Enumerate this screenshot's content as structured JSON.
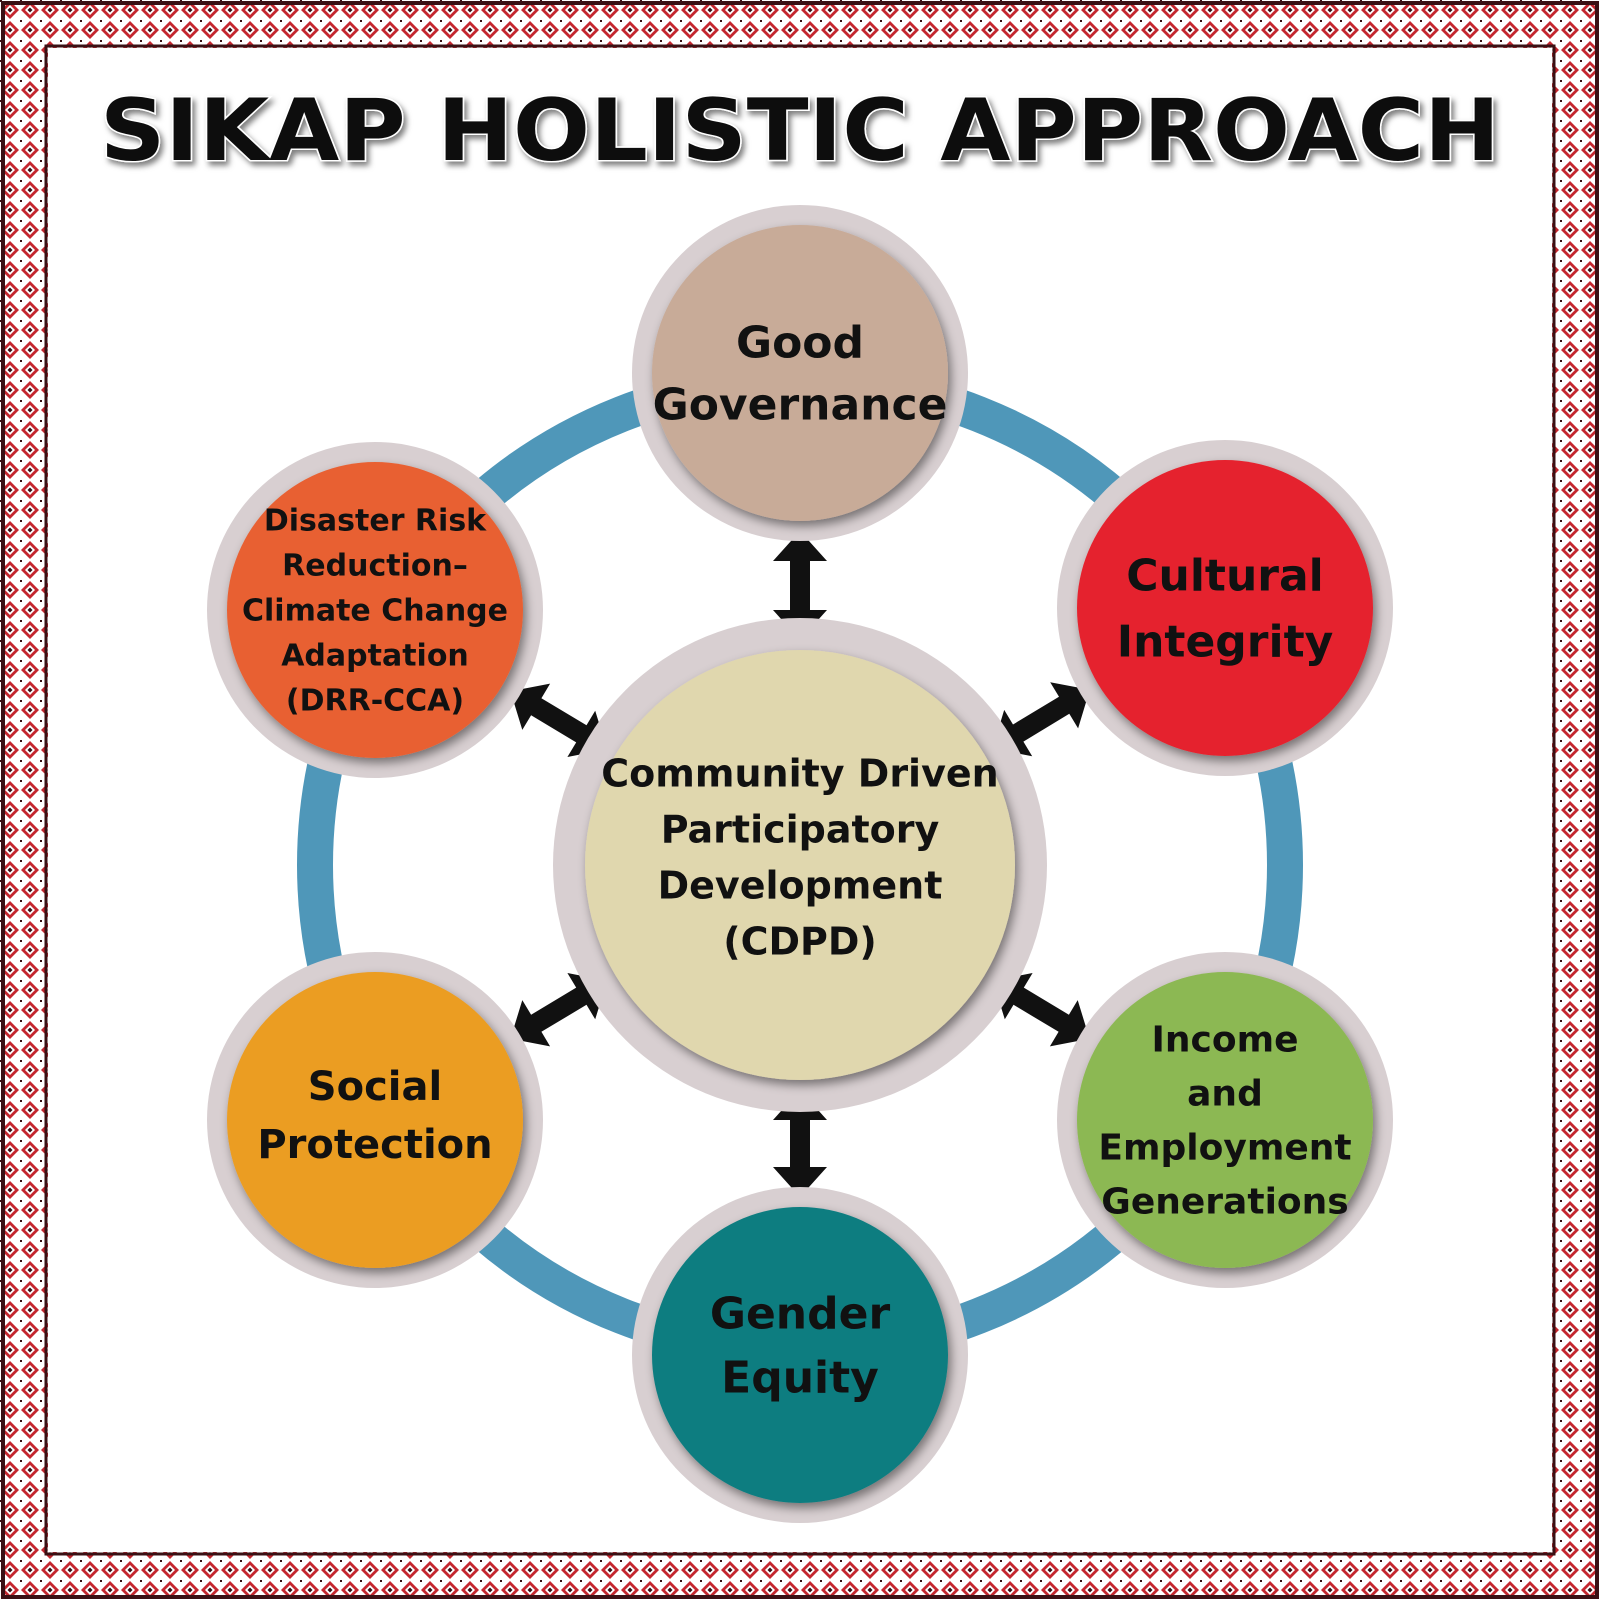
{
  "title": "SIKAP HOLISTIC APPROACH",
  "colors": {
    "border_red": "#c4262e",
    "border_dark": "#3a1014",
    "ring": "#4f97b9",
    "halo": "#d8cfd1",
    "arrow": "#111111"
  },
  "center": {
    "lines": [
      "Community Driven",
      "Participatory",
      "Development",
      "(CDPD)"
    ],
    "color": "#e0d7ae"
  },
  "nodes": [
    {
      "id": "good-governance",
      "lines": [
        "Good",
        "Governance"
      ],
      "color": "#c8ab98"
    },
    {
      "id": "cultural-integrity",
      "lines": [
        "Cultural",
        "Integrity"
      ],
      "color": "#e5242d"
    },
    {
      "id": "income-employment",
      "lines": [
        "Income",
        "and",
        "Employment",
        "Generations"
      ],
      "color": "#8cb852"
    },
    {
      "id": "gender-equity",
      "lines": [
        "Gender",
        "Equity"
      ],
      "color": "#0e7d80"
    },
    {
      "id": "social-protection",
      "lines": [
        "Social",
        "Protection"
      ],
      "color": "#eb9d24"
    },
    {
      "id": "drr-cca",
      "lines": [
        "Disaster Risk",
        "Reduction–",
        "Climate Change",
        "Adaptation",
        "(DRR-CCA)"
      ],
      "color": "#e86133"
    }
  ]
}
